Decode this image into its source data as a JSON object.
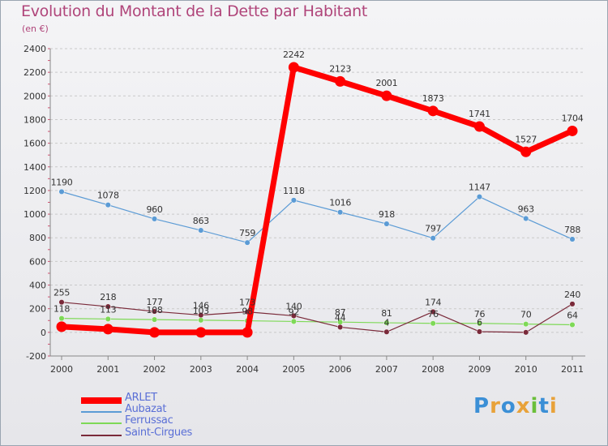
{
  "header": {
    "title": "Evolution du Montant de la Dette par Habitant",
    "subtitle": "(en €)"
  },
  "logo": {
    "text": "Proxiti"
  },
  "chart_data": {
    "type": "line",
    "x": [
      "2000",
      "2001",
      "2002",
      "2003",
      "2004",
      "2005",
      "2006",
      "2007",
      "2008",
      "2009",
      "2010",
      "2011"
    ],
    "ylim": [
      -200,
      2400
    ],
    "yticks": [
      -200,
      0,
      200,
      400,
      600,
      800,
      1000,
      1200,
      1400,
      1600,
      1800,
      2000,
      2200,
      2400
    ],
    "grid": "horizontal dashed",
    "legend_position": "bottom-left",
    "series": [
      {
        "name": "ARLET",
        "color": "#ff0000",
        "values": [
          48,
          27,
          0,
          0,
          0,
          2242,
          2123,
          2001,
          1873,
          1741,
          1527,
          1704
        ],
        "labels": [
          "",
          "",
          "",
          "",
          "",
          "2242",
          "2123",
          "2001",
          "1873",
          "1741",
          "1527",
          "1704"
        ]
      },
      {
        "name": "Aubazat",
        "color": "#5b9bd5",
        "values": [
          1190,
          1078,
          960,
          863,
          759,
          1118,
          1016,
          918,
          797,
          1147,
          963,
          788
        ],
        "labels": [
          "1190",
          "1078",
          "960",
          "863",
          "759",
          "1118",
          "1016",
          "918",
          "797",
          "1147",
          "963",
          "788"
        ]
      },
      {
        "name": "Ferrussac",
        "color": "#7ed957",
        "values": [
          118,
          113,
          108,
          103,
          98,
          92,
          87,
          81,
          76,
          76,
          70,
          64
        ],
        "labels": [
          "118",
          "113",
          "108",
          "103",
          "98",
          "92",
          "87",
          "81",
          "76",
          "76",
          "70",
          "64"
        ]
      },
      {
        "name": "Saint-Cirgues",
        "color": "#7a2a3a",
        "values": [
          255,
          218,
          177,
          146,
          173,
          140,
          44,
          4,
          174,
          6,
          0,
          240
        ],
        "labels": [
          "255",
          "218",
          "177",
          "146",
          "173",
          "140",
          "44",
          "4",
          "174",
          "6",
          "",
          "240"
        ]
      }
    ]
  }
}
